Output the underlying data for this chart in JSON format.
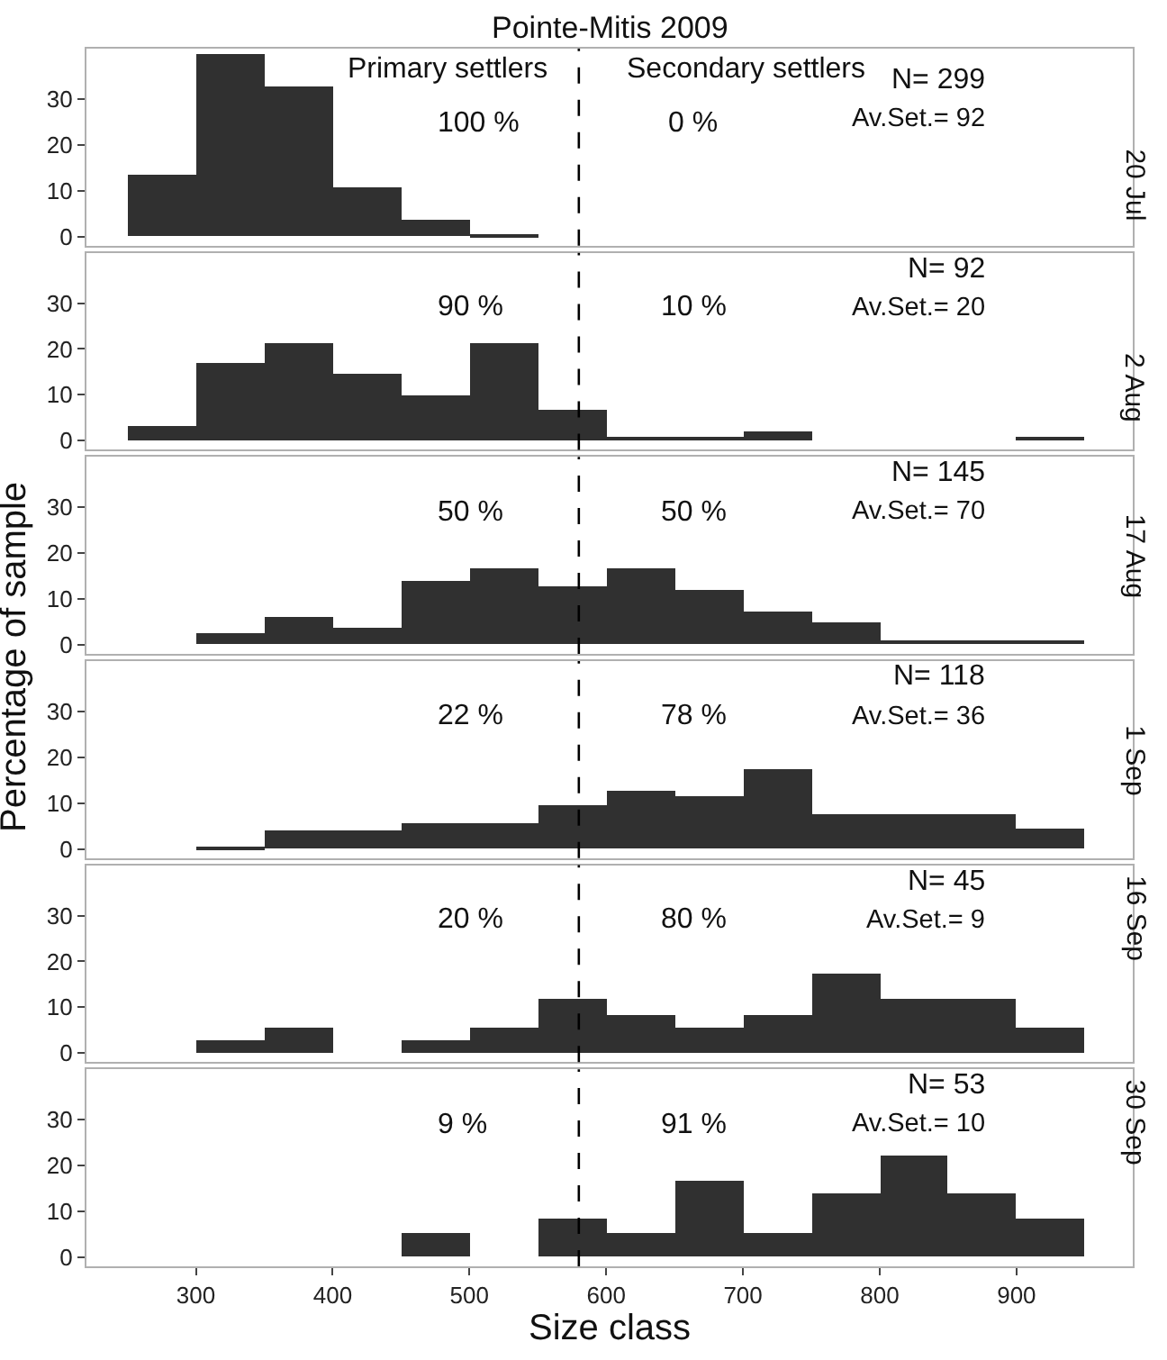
{
  "chart_data": [
    {
      "type": "histogram",
      "title": "Pointe-Mitis 2009",
      "subtitle": "20 Jul",
      "color": "#303030",
      "bins": [
        250,
        300,
        350,
        400,
        450,
        500,
        550,
        600,
        650,
        700,
        750,
        800,
        850,
        900,
        950
      ],
      "values": [
        13.5,
        39.7,
        32.7,
        10.6,
        3.5,
        0.6,
        0,
        0,
        0,
        0,
        0,
        0,
        0,
        0
      ],
      "xlim": [
        220,
        985
      ],
      "ylim": [
        -2,
        41
      ],
      "yticks": [
        0,
        10,
        20,
        30
      ],
      "tick_labels": "y",
      "ref_lines": [
        {
          "axis": "x",
          "value": 580,
          "line_style": "dashed",
          "color": "#000000"
        }
      ],
      "annotations": [
        "Primary settlers",
        "Secondary settlers",
        "100 %",
        "0 %",
        "N= 299",
        "Av.Set.= 92"
      ]
    },
    {
      "type": "histogram",
      "subtitle": "2 Aug",
      "color": "#303030",
      "bins": [
        250,
        300,
        350,
        400,
        450,
        500,
        550,
        600,
        650,
        700,
        750,
        800,
        850,
        900,
        950
      ],
      "values": [
        3.4,
        16.9,
        21.3,
        14.5,
        10,
        21.3,
        6.8,
        1,
        1,
        2.2,
        0,
        0,
        0,
        1
      ],
      "xlim": [
        220,
        985
      ],
      "ylim": [
        -2,
        41
      ],
      "yticks": [
        0,
        10,
        20,
        30
      ],
      "tick_labels": "y",
      "ref_lines": [
        {
          "axis": "x",
          "value": 580,
          "line_style": "dashed",
          "color": "#000000"
        }
      ],
      "annotations": [
        "90 %",
        "10 %",
        "N= 92",
        "Av.Set.= 20"
      ]
    },
    {
      "type": "histogram",
      "subtitle": "17 Aug",
      "ylabel": "Percentage of sample",
      "color": "#303030",
      "bins": [
        250,
        300,
        350,
        400,
        450,
        500,
        550,
        600,
        650,
        700,
        750,
        800,
        850,
        900,
        950
      ],
      "values": [
        0,
        2.6,
        6.1,
        3.5,
        13.9,
        16.8,
        12.6,
        16.8,
        11.8,
        7.1,
        4.8,
        1.1,
        1.1,
        1.1
      ],
      "xlim": [
        220,
        985
      ],
      "ylim": [
        -2,
        41
      ],
      "yticks": [
        0,
        10,
        20,
        30
      ],
      "tick_labels": "y",
      "ref_lines": [
        {
          "axis": "x",
          "value": 580,
          "line_style": "dashed",
          "color": "#000000"
        }
      ],
      "annotations": [
        "50 %",
        "50 %",
        "N= 145",
        "Av.Set.= 70"
      ]
    },
    {
      "type": "histogram",
      "subtitle": "1 Sep",
      "color": "#303030",
      "bins": [
        250,
        300,
        350,
        400,
        450,
        500,
        550,
        600,
        650,
        700,
        750,
        800,
        850,
        900,
        950
      ],
      "values": [
        0,
        0.5,
        3.9,
        3.9,
        5.6,
        5.6,
        9.5,
        12.6,
        11.5,
        17.3,
        7.6,
        7.6,
        7.6,
        4.5
      ],
      "xlim": [
        220,
        985
      ],
      "ylim": [
        -2,
        41
      ],
      "yticks": [
        0,
        10,
        20,
        30
      ],
      "tick_labels": "y",
      "ref_lines": [
        {
          "axis": "x",
          "value": 580,
          "line_style": "dashed",
          "color": "#000000"
        }
      ],
      "annotations": [
        "22 %",
        "78 %",
        "N= 118",
        "Av.Set.= 36"
      ]
    },
    {
      "type": "histogram",
      "subtitle": "16 Sep",
      "color": "#303030",
      "bins": [
        250,
        300,
        350,
        400,
        450,
        500,
        550,
        600,
        650,
        700,
        750,
        800,
        850,
        900,
        950
      ],
      "values": [
        0,
        2.7,
        5.6,
        0,
        2.7,
        5.6,
        11.8,
        8.5,
        5.6,
        8.5,
        17.6,
        11.8,
        11.8,
        5.6
      ],
      "xlim": [
        220,
        985
      ],
      "ylim": [
        -2,
        41
      ],
      "yticks": [
        0,
        10,
        20,
        30
      ],
      "tick_labels": "y",
      "ref_lines": [
        {
          "axis": "x",
          "value": 580,
          "line_style": "dashed",
          "color": "#000000"
        }
      ],
      "annotations": [
        "20 %",
        "80 %",
        "N= 45",
        "Av.Set.= 9"
      ]
    },
    {
      "type": "histogram",
      "subtitle": "30 Sep",
      "xlabel": "Size class",
      "color": "#303030",
      "bins": [
        250,
        300,
        350,
        400,
        450,
        500,
        550,
        600,
        650,
        700,
        750,
        800,
        850,
        900,
        950
      ],
      "values": [
        0,
        0,
        0,
        0,
        5.3,
        0,
        8.4,
        5.3,
        16.5,
        5.3,
        13.7,
        22.1,
        13.7,
        8.4
      ],
      "xlim": [
        220,
        985
      ],
      "ylim": [
        -2,
        41
      ],
      "yticks": [
        0,
        10,
        20,
        30
      ],
      "xticks": [
        300,
        400,
        500,
        600,
        700,
        800,
        900
      ],
      "ref_lines": [
        {
          "axis": "x",
          "value": 580,
          "line_style": "dashed",
          "color": "#000000"
        }
      ],
      "annotations": [
        "9 %",
        "91 %",
        "N= 53",
        "Av.Set.= 10"
      ]
    }
  ]
}
